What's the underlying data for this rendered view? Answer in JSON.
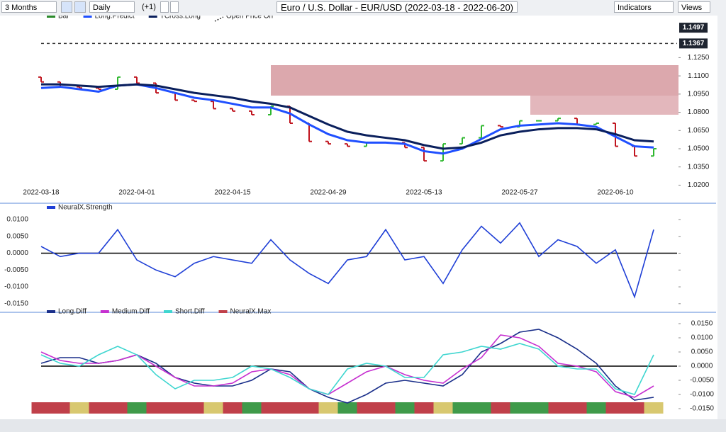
{
  "toolbar": {
    "range": "3 Months",
    "interval": "Daily",
    "offset": "(+1)",
    "title": "Euro / U.S. Dollar - EUR/USD (2022-03-18 - 2022-06-20)",
    "indicators": "Indicators",
    "views": "Views"
  },
  "chart_data": [
    {
      "type": "price",
      "categories": [
        "2022-03-18",
        null,
        null,
        null,
        null,
        "2022-04-01",
        null,
        null,
        null,
        null,
        "2022-04-15",
        null,
        null,
        null,
        null,
        "2022-04-29",
        null,
        null,
        null,
        null,
        "2022-05-13",
        null,
        null,
        null,
        null,
        "2022-05-27",
        null,
        null,
        null,
        null,
        "2022-06-10",
        null,
        null
      ],
      "bars": {
        "name": "Bar",
        "open": [
          1.109,
          1.105,
          1.101,
          1.1,
          1.099,
          1.109,
          1.104,
          1.096,
          1.09,
          1.089,
          1.083,
          1.081,
          1.078,
          1.085,
          1.071,
          1.056,
          1.054,
          1.052,
          1.055,
          1.055,
          1.051,
          1.04,
          1.054,
          1.059,
          1.069,
          1.068,
          1.073,
          1.073,
          1.075,
          1.07,
          1.071,
          1.052,
          1.044
        ],
        "close": [
          1.105,
          1.101,
          1.1,
          1.099,
          1.109,
          1.104,
          1.096,
          1.09,
          1.089,
          1.083,
          1.081,
          1.078,
          1.085,
          1.071,
          1.056,
          1.054,
          1.052,
          1.055,
          1.055,
          1.051,
          1.04,
          1.054,
          1.059,
          1.069,
          1.068,
          1.073,
          1.073,
          1.075,
          1.07,
          1.071,
          1.052,
          1.044,
          1.05
        ]
      },
      "series": [
        {
          "name": "Long.Predict",
          "color": "#1f4fff",
          "values": [
            1.1,
            1.101,
            1.099,
            1.097,
            1.102,
            1.103,
            1.1,
            1.096,
            1.092,
            1.09,
            1.087,
            1.084,
            1.084,
            1.079,
            1.07,
            1.062,
            1.057,
            1.055,
            1.055,
            1.054,
            1.048,
            1.046,
            1.05,
            1.058,
            1.066,
            1.069,
            1.07,
            1.071,
            1.07,
            1.068,
            1.06,
            1.052,
            1.051
          ]
        },
        {
          "name": "TCross.Long",
          "color": "#0a1f5c",
          "values": [
            1.103,
            1.103,
            1.102,
            1.101,
            1.102,
            1.103,
            1.102,
            1.099,
            1.096,
            1.094,
            1.092,
            1.089,
            1.087,
            1.084,
            1.077,
            1.07,
            1.064,
            1.061,
            1.059,
            1.057,
            1.053,
            1.05,
            1.051,
            1.055,
            1.061,
            1.064,
            1.066,
            1.067,
            1.067,
            1.066,
            1.062,
            1.057,
            1.056
          ]
        }
      ],
      "reference_lines": [
        {
          "name": "Open Price On",
          "value": 1.1367,
          "label": "1.1367"
        }
      ],
      "price_labels": [
        {
          "value": 1.1497,
          "label": "1.1497"
        }
      ],
      "ylim": [
        1.015,
        1.155
      ],
      "yticks": [
        {
          "value": 1.02,
          "label": "1.0200"
        },
        {
          "value": 1.035,
          "label": "1.0350"
        },
        {
          "value": 1.05,
          "label": "1.0500"
        },
        {
          "value": 1.065,
          "label": "1.0650"
        },
        {
          "value": 1.08,
          "label": "1.0800"
        },
        {
          "value": 1.095,
          "label": "1.0950"
        },
        {
          "value": 1.11,
          "label": "1.1100"
        },
        {
          "value": 1.125,
          "label": "1.1250"
        }
      ]
    },
    {
      "type": "line",
      "series": [
        {
          "name": "NeuralX.Strength",
          "color": "#1f3fd6",
          "values": [
            0.002,
            -0.001,
            0.0,
            0.0,
            0.007,
            -0.002,
            -0.005,
            -0.007,
            -0.003,
            -0.001,
            -0.002,
            -0.003,
            0.004,
            -0.002,
            -0.006,
            -0.009,
            -0.002,
            -0.001,
            0.007,
            -0.002,
            -0.001,
            -0.009,
            0.001,
            0.008,
            0.003,
            0.009,
            -0.001,
            0.004,
            0.002,
            -0.003,
            0.001,
            -0.013,
            0.007
          ]
        }
      ],
      "ylim": [
        -0.0163,
        0.0121
      ],
      "yticks": [
        {
          "value": 0.01,
          "label": "0.0100"
        },
        {
          "value": 0.005,
          "label": "0.0050"
        },
        {
          "value": 0,
          "label": "0.0000"
        },
        {
          "value": -0.005,
          "label": "-0.0050"
        },
        {
          "value": -0.01,
          "label": "-0.0100"
        },
        {
          "value": -0.015,
          "label": "-0.0150"
        }
      ]
    },
    {
      "type": "line",
      "series": [
        {
          "name": "Long.Diff",
          "color": "#1a2f8a",
          "values": [
            0.001,
            0.003,
            0.003,
            0.001,
            0.002,
            0.004,
            0.001,
            -0.004,
            -0.006,
            -0.007,
            -0.007,
            -0.005,
            -0.001,
            -0.002,
            -0.008,
            -0.011,
            -0.013,
            -0.01,
            -0.006,
            -0.005,
            -0.006,
            -0.007,
            -0.003,
            0.005,
            0.008,
            0.012,
            0.013,
            0.01,
            0.006,
            0.001,
            -0.007,
            -0.012,
            -0.011
          ]
        },
        {
          "name": "Medium.Diff",
          "color": "#c630d0",
          "values": [
            0.005,
            0.002,
            0.001,
            0.001,
            0.002,
            0.004,
            0.0,
            -0.004,
            -0.007,
            -0.007,
            -0.006,
            -0.002,
            -0.001,
            -0.003,
            -0.008,
            -0.01,
            -0.006,
            -0.002,
            0.0,
            -0.003,
            -0.005,
            -0.006,
            -0.001,
            0.003,
            0.011,
            0.01,
            0.007,
            0.001,
            0.0,
            -0.002,
            -0.009,
            -0.011,
            -0.007
          ]
        },
        {
          "name": "Short.Diff",
          "color": "#3fd6d0",
          "values": [
            0.004,
            0.001,
            0.0,
            0.004,
            0.007,
            0.004,
            -0.003,
            -0.008,
            -0.005,
            -0.005,
            -0.004,
            0.0,
            -0.001,
            -0.004,
            -0.008,
            -0.01,
            -0.001,
            0.001,
            0.0,
            -0.004,
            -0.004,
            0.004,
            0.005,
            0.007,
            0.006,
            0.008,
            0.006,
            0.0,
            -0.001,
            -0.001,
            -0.008,
            -0.01,
            0.004
          ]
        }
      ],
      "strip": {
        "name": "NeuralX.Max",
        "colors": [
          "#c0404a",
          "#c0404a",
          "#d8c870",
          "#c0404a",
          "#c0404a",
          "#3f9a4a",
          "#c0404a",
          "#c0404a",
          "#c0404a",
          "#d8c870",
          "#c0404a",
          "#3f9a4a",
          "#c0404a",
          "#c0404a",
          "#c0404a",
          "#d8c870",
          "#3f9a4a",
          "#c0404a",
          "#c0404a",
          "#3f9a4a",
          "#c0404a",
          "#d8c870",
          "#3f9a4a",
          "#3f9a4a",
          "#c0404a",
          "#3f9a4a",
          "#3f9a4a",
          "#c0404a",
          "#c0404a",
          "#3f9a4a",
          "#c0404a",
          "#c0404a",
          "#d8c870"
        ]
      },
      "ylim": [
        -0.017,
        0.0175
      ],
      "yticks": [
        {
          "value": 0.015,
          "label": "0.0150"
        },
        {
          "value": 0.01,
          "label": "0.0100"
        },
        {
          "value": 0.005,
          "label": "0.0050"
        },
        {
          "value": 0,
          "label": "0.0000"
        },
        {
          "value": -0.005,
          "label": "-0.0050"
        },
        {
          "value": -0.01,
          "label": "-0.0100"
        },
        {
          "value": -0.015,
          "label": "-0.0150"
        }
      ]
    }
  ]
}
